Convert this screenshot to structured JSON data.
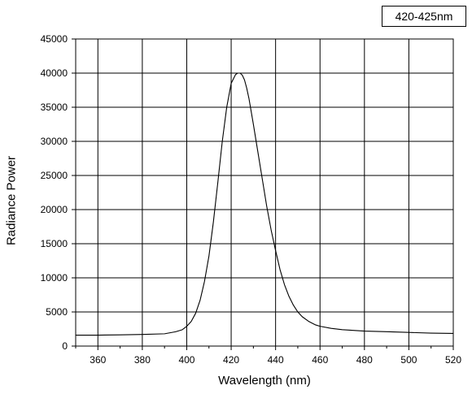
{
  "chart_data": {
    "type": "line",
    "legend_label": "420-425nm",
    "legend_position": "top-right",
    "xlabel": "Wavelength (nm)",
    "ylabel": "Radiance Power",
    "xlim": [
      350,
      520
    ],
    "ylim": [
      0,
      45000
    ],
    "x_ticks": [
      360,
      380,
      400,
      420,
      440,
      460,
      480,
      500,
      520
    ],
    "y_ticks": [
      0,
      5000,
      10000,
      15000,
      20000,
      25000,
      30000,
      35000,
      40000,
      45000
    ],
    "grid": true,
    "series": [
      {
        "color": "#000000",
        "x": [
          350,
          360,
          370,
          380,
          390,
          395,
          398,
          400,
          402,
          404,
          406,
          408,
          410,
          412,
          414,
          416,
          418,
          420,
          422,
          423,
          424,
          425,
          426,
          427,
          428,
          430,
          432,
          434,
          436,
          438,
          440,
          442,
          444,
          446,
          448,
          450,
          452,
          455,
          458,
          460,
          465,
          470,
          475,
          480,
          490,
          500,
          510,
          520
        ],
        "values": [
          1600,
          1600,
          1650,
          1700,
          1800,
          2100,
          2400,
          2900,
          3600,
          4800,
          6700,
          9500,
          13200,
          18200,
          24000,
          30000,
          35000,
          38500,
          39800,
          40000,
          40000,
          39700,
          39000,
          37800,
          36300,
          32500,
          28500,
          24500,
          20500,
          17000,
          14000,
          11200,
          9000,
          7300,
          6000,
          5000,
          4300,
          3600,
          3100,
          2900,
          2600,
          2400,
          2300,
          2200,
          2100,
          2000,
          1900,
          1850
        ]
      }
    ]
  }
}
